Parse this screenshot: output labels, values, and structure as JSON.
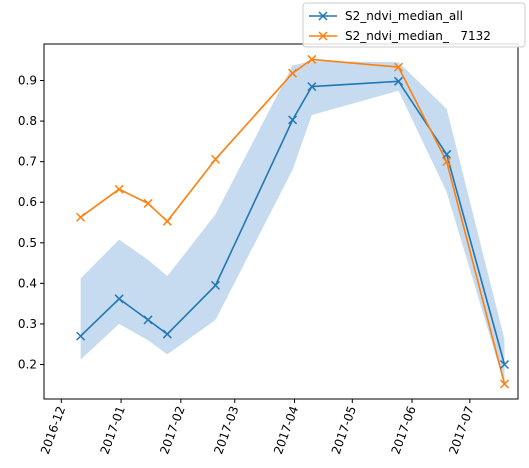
{
  "chart_data": {
    "type": "line",
    "x_type": "date",
    "x": [
      "2016-12-11",
      "2016-12-31",
      "2017-01-15",
      "2017-01-25",
      "2017-02-19",
      "2017-03-31",
      "2017-04-10",
      "2017-05-25",
      "2017-06-19",
      "2017-07-19"
    ],
    "series": [
      {
        "name": "S2_ndvi_median_all",
        "color": "#1f77b4",
        "marker": "x",
        "values": [
          0.27,
          0.362,
          0.31,
          0.275,
          0.395,
          0.803,
          0.885,
          0.898,
          0.718,
          0.2
        ],
        "band_lower": [
          0.212,
          0.3,
          0.26,
          0.225,
          0.31,
          0.68,
          0.815,
          0.875,
          0.625,
          0.15
        ],
        "band_upper": [
          0.412,
          0.508,
          0.458,
          0.418,
          0.57,
          0.937,
          0.948,
          0.945,
          0.83,
          0.262
        ],
        "band_color": "#c6dbef"
      },
      {
        "name": "S2_ndvi_median_   7132",
        "color": "#ff7f0e",
        "marker": "x",
        "values": [
          0.563,
          0.632,
          0.597,
          0.553,
          0.706,
          0.918,
          0.952,
          0.933,
          0.7,
          0.152
        ]
      }
    ],
    "y_ticks": [
      0.2,
      0.3,
      0.4,
      0.5,
      0.6,
      0.7,
      0.8,
      0.9
    ],
    "y_tick_labels": [
      "0.2",
      "0.3",
      "0.4",
      "0.5",
      "0.6",
      "0.7",
      "0.8",
      "0.9"
    ],
    "x_ticks": [
      "2016-12-01",
      "2017-01-01",
      "2017-02-01",
      "2017-03-01",
      "2017-04-01",
      "2017-05-01",
      "2017-06-01",
      "2017-07-01"
    ],
    "x_tick_labels": [
      "2016-12",
      "2017-01",
      "2017-02",
      "2017-03",
      "2017-04",
      "2017-05",
      "2017-06",
      "2017-07"
    ],
    "xlim": [
      "2016-11-22",
      "2017-07-26"
    ],
    "ylim": [
      0.115,
      0.99
    ],
    "grid": false,
    "legend_position": "top-right"
  }
}
